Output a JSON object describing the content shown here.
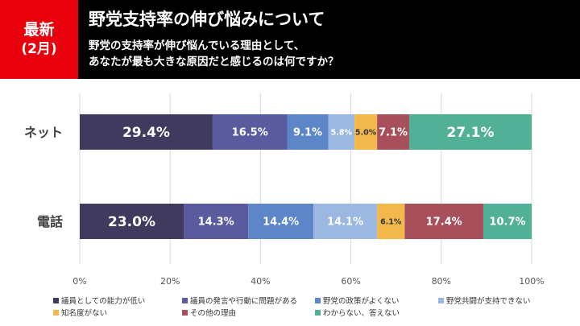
{
  "header": {
    "badge_line1": "最新",
    "badge_line2": "(2月)",
    "title": "野党支持率の伸び悩みについて",
    "question_line1": "野党の支持率が伸び悩んでいる理由として、",
    "question_line2": "あなたが最も大きな原因だと感じるのは何ですか？"
  },
  "chart_data": {
    "type": "bar",
    "orientation": "horizontal",
    "stacked": true,
    "categories": [
      "ネット",
      "電話"
    ],
    "series": [
      {
        "name": "議員としての能力が低い",
        "color": "#3f3a5e",
        "values": [
          29.4,
          23.0
        ],
        "labels": [
          "29.4%",
          "23.0%"
        ]
      },
      {
        "name": "議員の発言や行動に問題がある",
        "color": "#5a5a9e",
        "values": [
          16.5,
          14.3
        ],
        "labels": [
          "16.5%",
          "14.3%"
        ]
      },
      {
        "name": "野党の政策がよくない",
        "color": "#5c86c8",
        "values": [
          9.1,
          14.4
        ],
        "labels": [
          "9.1%",
          "14.4%"
        ]
      },
      {
        "name": "野党共闘が支持できない",
        "color": "#9ab8e0",
        "values": [
          5.8,
          14.1
        ],
        "labels": [
          "5.8%",
          "14.1%"
        ]
      },
      {
        "name": "知名度がない",
        "color": "#f2b84b",
        "values": [
          5.0,
          6.1
        ],
        "labels": [
          "5.0%",
          "6.1%"
        ]
      },
      {
        "name": "その他の理由",
        "color": "#a84f5c",
        "values": [
          7.1,
          17.4
        ],
        "labels": [
          "7.1%",
          "17.4%"
        ]
      },
      {
        "name": "わからない、答えない",
        "color": "#52b097",
        "values": [
          27.1,
          10.7
        ],
        "labels": [
          "27.1%",
          "10.7%"
        ]
      }
    ],
    "xlim": [
      0,
      100
    ],
    "xticks": [
      "0%",
      "20%",
      "40%",
      "60%",
      "80%",
      "100%"
    ],
    "grid": true,
    "legend_position": "bottom"
  }
}
